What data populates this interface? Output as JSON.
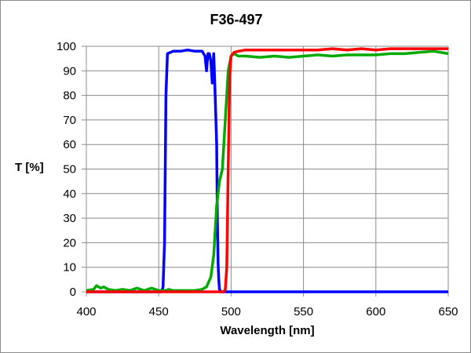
{
  "chart_data": {
    "type": "line",
    "title": "F36-497",
    "xlabel": "Wavelength [nm]",
    "ylabel": "T [%]",
    "xlim": [
      400,
      650
    ],
    "ylim": [
      0,
      100
    ],
    "xticks": [
      400,
      450,
      500,
      550,
      600,
      650
    ],
    "yticks": [
      0,
      10,
      20,
      30,
      40,
      50,
      60,
      70,
      80,
      90,
      100
    ],
    "grid": true,
    "legend": null,
    "series": [
      {
        "name": "blue",
        "color": "#0000ff",
        "x": [
          400,
          452,
          453,
          454,
          455,
          456,
          460,
          465,
          470,
          475,
          480,
          482,
          483,
          484,
          485,
          486,
          487,
          488,
          489,
          490,
          490.5,
          491,
          491.5,
          492,
          493,
          500,
          550,
          600,
          650
        ],
        "y": [
          0,
          0,
          2,
          20,
          80,
          97,
          98,
          98,
          98.5,
          98,
          98,
          96,
          90,
          97,
          97,
          94,
          85,
          97,
          80,
          60,
          30,
          12,
          5,
          1,
          0,
          0,
          0,
          0,
          0
        ]
      },
      {
        "name": "green",
        "color": "#00aa00",
        "x": [
          400,
          405,
          407,
          410,
          412,
          415,
          420,
          425,
          430,
          435,
          440,
          445,
          450,
          455,
          457,
          460,
          465,
          470,
          475,
          480,
          483,
          486,
          488,
          490,
          492,
          494,
          496,
          498,
          500,
          502,
          505,
          510,
          520,
          530,
          540,
          550,
          560,
          570,
          580,
          590,
          600,
          610,
          620,
          630,
          640,
          650
        ],
        "y": [
          0.5,
          1,
          2.5,
          1.5,
          2,
          1,
          0.5,
          1,
          0.5,
          1.5,
          0.5,
          1.5,
          0.5,
          0.5,
          1,
          0.5,
          0.5,
          0.5,
          0.5,
          1,
          2,
          6,
          15,
          35,
          45,
          50,
          70,
          90,
          96,
          97,
          96,
          96,
          95.5,
          96,
          95.5,
          96,
          96.5,
          96,
          96.5,
          96.5,
          96.5,
          97,
          97,
          97.5,
          98,
          97
        ]
      },
      {
        "name": "red",
        "color": "#ff0000",
        "x": [
          400,
          495,
          496,
          497,
          498,
          499,
          500,
          502,
          505,
          510,
          520,
          530,
          540,
          550,
          560,
          570,
          580,
          590,
          600,
          610,
          620,
          630,
          640,
          650
        ],
        "y": [
          0,
          0,
          1,
          10,
          50,
          88,
          96,
          97.5,
          98,
          98.5,
          98.5,
          98.5,
          98.5,
          98.5,
          98.5,
          99,
          98.5,
          99,
          98.5,
          99,
          99,
          99,
          99,
          99
        ]
      }
    ]
  }
}
